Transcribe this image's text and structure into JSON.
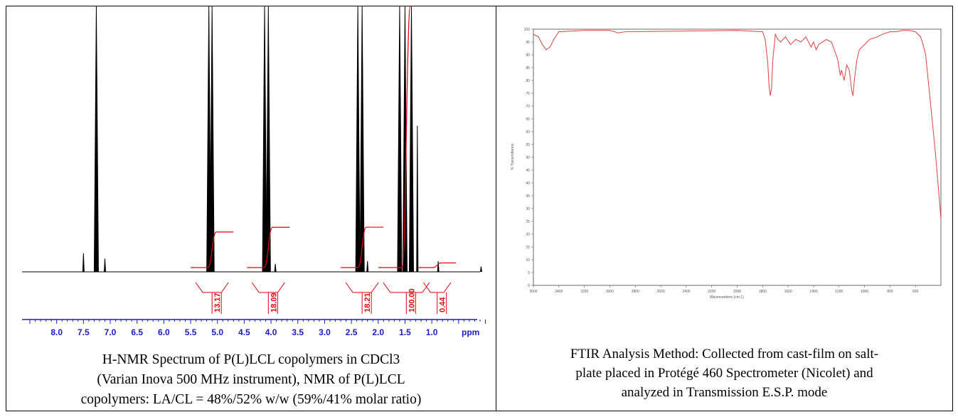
{
  "colors": {
    "spectrum": "#000000",
    "integral": "#e8000b",
    "ftir_line": "#e04040",
    "axis_blue": "#1a1acc",
    "grid": "#d9d9d9"
  },
  "nmr": {
    "caption_lines": [
      "H-NMR Spectrum of P(L)LCL copolymers in CDCl3",
      "(Varian Inova 500 MHz instrument), NMR of P(L)LCL",
      "copolymers: LA/CL = 48%/52% w/w (59%/41% molar ratio)"
    ],
    "axis_unit": "ppm"
  },
  "ftir": {
    "caption_lines": [
      "FTIR Analysis Method: Collected from cast-film on salt-",
      "plate placed in Protégé 460 Spectrometer (Nicolet) and",
      "analyzed in Transmission E.S.P. mode"
    ],
    "y_axis_label": "% Transmittance",
    "x_axis_label": "Wavenumbers (cm-1)"
  },
  "chart_data": [
    {
      "type": "line",
      "x_unit": "ppm",
      "xlim": [
        8.5,
        0.0
      ],
      "x_reversed": true,
      "ticks": [
        "8.0",
        "7.5",
        "7.0",
        "6.5",
        "6.0",
        "5.5",
        "5.0",
        "4.5",
        "4.0",
        "3.5",
        "3.0",
        "2.5",
        "2.0",
        "1.5",
        "1.0"
      ],
      "tick_values": [
        8.0,
        7.5,
        7.0,
        6.5,
        6.0,
        5.5,
        5.0,
        4.5,
        4.0,
        3.5,
        3.0,
        2.5,
        2.0,
        1.5,
        1.0
      ],
      "peaks": [
        {
          "ppm": 7.5,
          "height": 0.07
        },
        {
          "ppm": 7.26,
          "height": 1.0
        },
        {
          "ppm": 7.1,
          "height": 0.05
        },
        {
          "ppm": 5.16,
          "height": 1.0
        },
        {
          "ppm": 5.1,
          "height": 1.0
        },
        {
          "ppm": 4.12,
          "height": 1.0
        },
        {
          "ppm": 4.05,
          "height": 1.0
        },
        {
          "ppm": 3.92,
          "height": 0.03
        },
        {
          "ppm": 2.38,
          "height": 1.0
        },
        {
          "ppm": 2.3,
          "height": 1.0
        },
        {
          "ppm": 2.2,
          "height": 0.04
        },
        {
          "ppm": 1.6,
          "height": 1.0
        },
        {
          "ppm": 1.5,
          "height": 1.0
        },
        {
          "ppm": 1.38,
          "height": 1.0
        },
        {
          "ppm": 1.27,
          "height": 0.55
        },
        {
          "ppm": 0.88,
          "height": 0.04
        },
        {
          "ppm": 0.08,
          "height": 0.02
        }
      ],
      "integrals": [
        {
          "label": "13.17",
          "from": 5.3,
          "to": 4.9,
          "value": 13.17
        },
        {
          "label": "18.09",
          "from": 4.25,
          "to": 3.85,
          "value": 18.09
        },
        {
          "label": "18.21",
          "from": 2.5,
          "to": 2.1,
          "value": 18.21
        },
        {
          "label": "100.00",
          "from": 1.8,
          "to": 1.15,
          "value": 100.0
        },
        {
          "label": "0.44",
          "from": 1.05,
          "to": 0.75,
          "value": 0.44
        }
      ]
    },
    {
      "type": "line",
      "x_unit": "cm-1",
      "xlim": [
        3600,
        400
      ],
      "x_reversed": true,
      "ylim": [
        0,
        100
      ],
      "x_ticks": [
        "3600",
        "3400",
        "3200",
        "3000",
        "2800",
        "2600",
        "2400",
        "2200",
        "2000",
        "1800",
        "1600",
        "1400",
        "1200",
        "1000",
        "800",
        "600"
      ],
      "y_ticks": [
        "100",
        "95",
        "90",
        "85",
        "80",
        "75",
        "70",
        "65",
        "60",
        "55",
        "50",
        "45",
        "40",
        "35",
        "30",
        "25",
        "20",
        "15",
        "10",
        "5",
        "0"
      ],
      "x": [
        3600,
        3560,
        3530,
        3500,
        3470,
        3440,
        3400,
        3200,
        3000,
        2960,
        2940,
        2880,
        2000,
        1800,
        1780,
        1760,
        1750,
        1740,
        1730,
        1720,
        1700,
        1680,
        1660,
        1620,
        1580,
        1540,
        1500,
        1460,
        1420,
        1400,
        1380,
        1360,
        1300,
        1260,
        1230,
        1210,
        1190,
        1180,
        1160,
        1140,
        1120,
        1100,
        1090,
        1080,
        1060,
        1040,
        1000,
        960,
        900,
        860,
        800,
        750,
        700,
        650,
        600,
        560,
        540,
        520,
        500,
        480,
        460,
        440,
        420,
        400
      ],
      "y": [
        98,
        97,
        94,
        92,
        93,
        96,
        99,
        99.5,
        99.5,
        99,
        98.5,
        99,
        99.5,
        99,
        96,
        87,
        78,
        74,
        77,
        88,
        98,
        96,
        95,
        97,
        94,
        96,
        95,
        97,
        93,
        95,
        92,
        94,
        96,
        95,
        91,
        88,
        82,
        84,
        80,
        86,
        84,
        76,
        74,
        80,
        88,
        92,
        94,
        96,
        97,
        98,
        99,
        99,
        99.5,
        99.5,
        99,
        97,
        94,
        90,
        80,
        70,
        60,
        50,
        38,
        26
      ]
    }
  ]
}
